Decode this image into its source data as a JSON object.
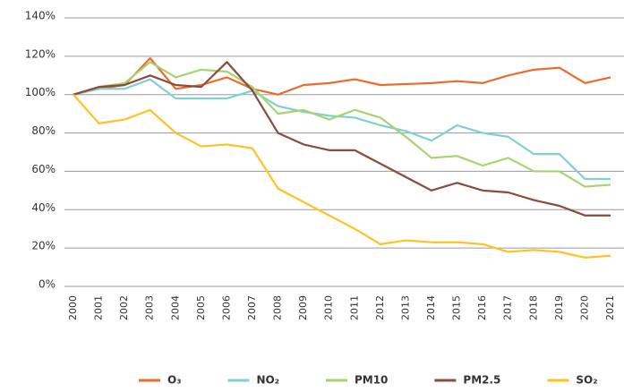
{
  "chart_data": {
    "type": "line",
    "categories": [
      "2000",
      "2001",
      "2002",
      "2003",
      "2004",
      "2005",
      "2006",
      "2007",
      "2008",
      "2009",
      "2010",
      "2011",
      "2012",
      "2013",
      "2014",
      "2015",
      "2016",
      "2017",
      "2018",
      "2019",
      "2020",
      "2021"
    ],
    "series": [
      {
        "name": "O₃",
        "color": "#ee6a2c",
        "values": [
          100,
          103,
          105,
          119,
          103,
          105,
          109,
          103,
          100,
          105,
          106,
          108,
          105,
          105.5,
          106,
          107,
          106,
          110,
          113,
          114,
          106,
          109
        ]
      },
      {
        "name": "NO₂",
        "color": "#7fd0d4",
        "values": [
          100,
          103,
          103,
          108,
          98,
          98,
          98,
          102,
          94,
          91,
          89,
          88,
          84,
          81,
          76,
          84,
          80,
          78,
          69,
          69,
          56,
          56
        ]
      },
      {
        "name": "PM10",
        "color": "#a7d46f",
        "values": [
          100,
          104,
          106,
          117,
          109,
          113,
          112,
          104,
          90,
          92,
          87,
          92,
          88,
          78,
          67,
          68,
          63,
          67,
          60,
          60,
          52,
          53
        ]
      },
      {
        "name": "PM2.5",
        "color": "#8b4c3c",
        "values": [
          100,
          104,
          105,
          110,
          105,
          104,
          117,
          102,
          80,
          74,
          71,
          71,
          64,
          57,
          50,
          54,
          50,
          49,
          45,
          42,
          37,
          37
        ]
      },
      {
        "name": "SO₂",
        "color": "#ffc222",
        "values": [
          100,
          85,
          87,
          92,
          80,
          73,
          74,
          72,
          51,
          44,
          37,
          30,
          22,
          24,
          23,
          23,
          22,
          18,
          19,
          18,
          15,
          16
        ]
      }
    ],
    "ylim": [
      0,
      140
    ],
    "yticks": [
      {
        "value": 0,
        "label": "0%"
      },
      {
        "value": 20,
        "label": "20%"
      },
      {
        "value": 40,
        "label": "40%"
      },
      {
        "value": 60,
        "label": "60%"
      },
      {
        "value": 80,
        "label": "80%"
      },
      {
        "value": 100,
        "label": "100%"
      },
      {
        "value": 120,
        "label": "120%"
      },
      {
        "value": 140,
        "label": "140%"
      }
    ],
    "grid": true,
    "legend": "bottom"
  }
}
